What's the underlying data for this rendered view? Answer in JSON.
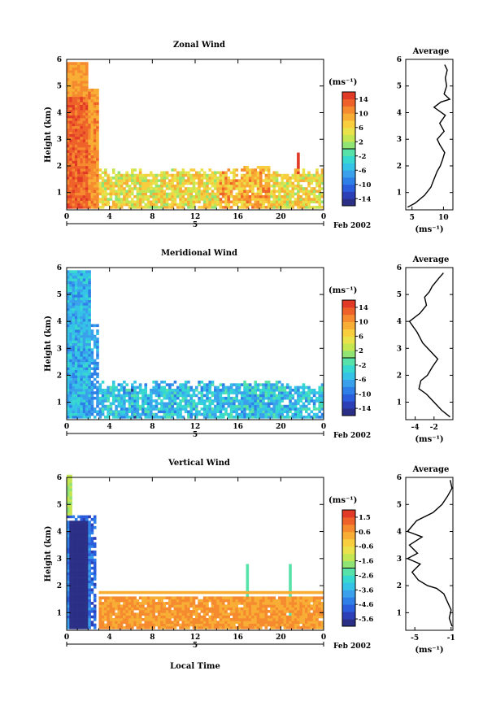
{
  "figure": {
    "xlabel": "Local Time",
    "date_label": "Feb 2002",
    "day_label": "5"
  },
  "chart_data": [
    {
      "type": "heatmap",
      "title": "Zonal Wind",
      "ylabel": "Height (km)",
      "xlim": [
        0,
        24
      ],
      "ylim": [
        0.35,
        6
      ],
      "xticks": [
        "0",
        "4",
        "8",
        "12",
        "16",
        "20",
        "0"
      ],
      "yticks": [
        "1",
        "2",
        "3",
        "4",
        "5",
        "6"
      ],
      "colorbar": {
        "unit": "(ms⁻¹)",
        "ticks": [
          "14",
          "10",
          "6",
          "2",
          "-2",
          "-6",
          "-10",
          "-14"
        ],
        "range": [
          -16,
          16
        ]
      },
      "average": {
        "title": "Average",
        "xlabel": "(ms⁻¹)",
        "xlim": [
          4,
          11.5
        ],
        "xticks": [
          "5",
          "10"
        ],
        "x": [
          4.3,
          5.5,
          7.0,
          8.0,
          8.5,
          9.0,
          9.5,
          9.8,
          10.2,
          9.4,
          9.0,
          10.1,
          9.4,
          10.3,
          8.5,
          9.6,
          11.0,
          10.1,
          10.5,
          10.3,
          10.6,
          10.2
        ],
        "y": [
          0.45,
          0.6,
          0.9,
          1.2,
          1.5,
          1.8,
          2.0,
          2.2,
          2.5,
          2.8,
          3.0,
          3.3,
          3.6,
          3.9,
          4.2,
          4.4,
          4.5,
          4.7,
          5.0,
          5.3,
          5.6,
          5.8
        ]
      },
      "series_hint": "wind speed field: strong eastward (10-15 ms-1) 0-3 h up to 5.8 km, weaker 2-10 ms-1 below 1.7 km later in the day"
    },
    {
      "type": "heatmap",
      "title": "Meridional Wind",
      "ylabel": "Height (km)",
      "xlim": [
        0,
        24
      ],
      "ylim": [
        0.35,
        6
      ],
      "xticks": [
        "0",
        "4",
        "8",
        "12",
        "16",
        "20",
        "0"
      ],
      "yticks": [
        "1",
        "2",
        "3",
        "4",
        "5",
        "6"
      ],
      "colorbar": {
        "unit": "(ms⁻¹)",
        "ticks": [
          "14",
          "10",
          "6",
          "2",
          "-2",
          "-6",
          "-10",
          "-14"
        ],
        "range": [
          -16,
          16
        ]
      },
      "average": {
        "title": "Average",
        "xlabel": "(ms⁻¹)",
        "xlim": [
          -5,
          0
        ],
        "xticks": [
          "-4",
          "-2"
        ],
        "x": [
          -0.3,
          -1.2,
          -2.0,
          -2.8,
          -3.6,
          -3.4,
          -2.7,
          -2.2,
          -1.6,
          -2.4,
          -3.2,
          -3.8,
          -4.6,
          -3.5,
          -2.8,
          -3.0,
          -2.5,
          -2.2,
          -1.5,
          -1.0
        ],
        "y": [
          0.45,
          0.7,
          1.0,
          1.3,
          1.5,
          1.8,
          2.0,
          2.3,
          2.6,
          2.9,
          3.2,
          3.6,
          4.0,
          4.3,
          4.6,
          4.9,
          5.1,
          5.3,
          5.6,
          5.8
        ]
      }
    },
    {
      "type": "heatmap",
      "title": "Vertical Wind",
      "ylabel": "Height (km)",
      "xlim": [
        0,
        24
      ],
      "ylim": [
        0.35,
        6
      ],
      "xticks": [
        "0",
        "4",
        "8",
        "12",
        "16",
        "20",
        "0"
      ],
      "yticks": [
        "1",
        "2",
        "3",
        "4",
        "5",
        "6"
      ],
      "colorbar": {
        "unit": "(ms⁻¹)",
        "ticks": [
          "1.5",
          "0.6",
          "-0.6",
          "-1.6",
          "-2.6",
          "-3.6",
          "-4.6",
          "-5.6"
        ],
        "range": [
          -6.1,
          2.0
        ]
      },
      "average": {
        "title": "Average",
        "xlabel": "(ms⁻¹)",
        "xlim": [
          -6,
          -0.8
        ],
        "xticks": [
          "-5",
          "-1"
        ],
        "x": [
          -0.9,
          -1.2,
          -1.0,
          -1.4,
          -1.8,
          -2.6,
          -3.6,
          -4.6,
          -5.3,
          -4.4,
          -5.8,
          -4.7,
          -5.6,
          -4.2,
          -5.8,
          -4.8,
          -3.0,
          -2.0,
          -1.4,
          -0.9,
          -1.1
        ],
        "y": [
          0.5,
          0.8,
          1.1,
          1.4,
          1.7,
          1.9,
          2.0,
          2.2,
          2.5,
          2.8,
          3.0,
          3.2,
          3.5,
          3.8,
          4.0,
          4.4,
          4.7,
          5.0,
          5.3,
          5.6,
          5.9
        ]
      }
    }
  ]
}
